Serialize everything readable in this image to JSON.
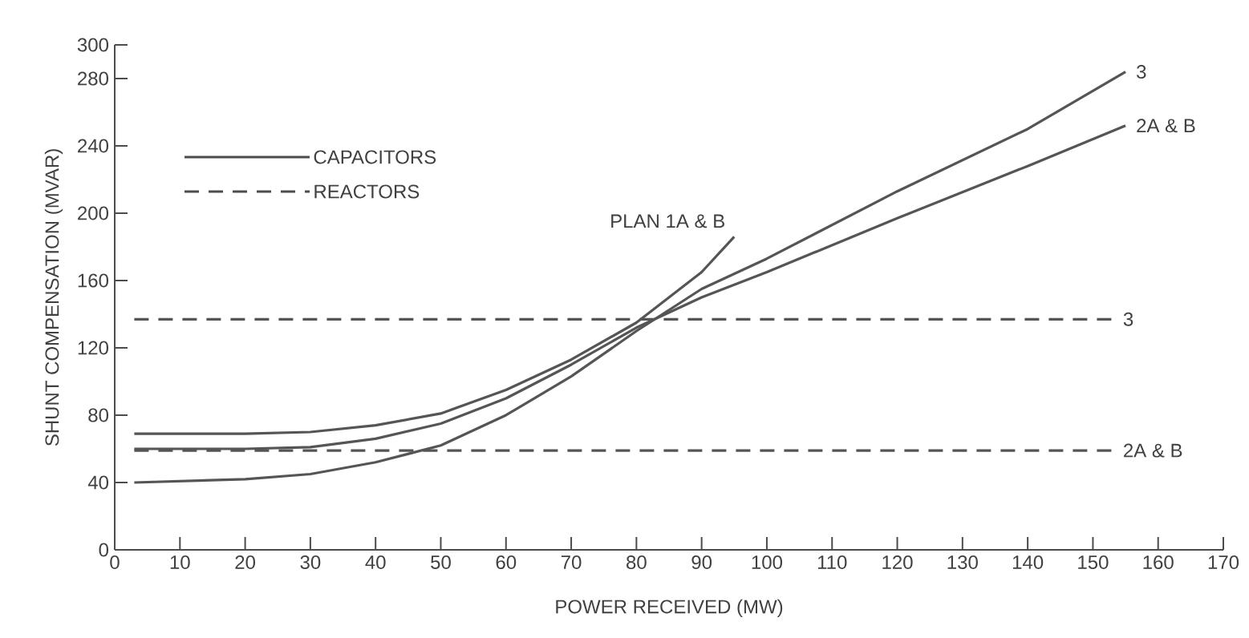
{
  "chart_data": {
    "type": "line",
    "xlabel": "POWER RECEIVED (MW)",
    "ylabel": "SHUNT COMPENSATION (MVAR)",
    "xlim": [
      0,
      170
    ],
    "ylim": [
      0,
      300
    ],
    "xticks": [
      0,
      10,
      20,
      30,
      40,
      50,
      60,
      70,
      80,
      90,
      100,
      110,
      120,
      130,
      140,
      150,
      160,
      170
    ],
    "yticks": [
      0,
      40,
      80,
      120,
      160,
      200,
      240,
      280,
      300
    ],
    "grid": false,
    "marker": "none",
    "annotations": [
      "CAPACITORS",
      "REACTORS"
    ],
    "series": [
      {
        "name": "3",
        "color": "#555555",
        "line_style": "solid",
        "x": [
          3,
          20,
          30,
          40,
          50,
          60,
          70,
          80,
          90,
          100,
          120,
          140,
          155
        ],
        "values": [
          40,
          42,
          45,
          52,
          62,
          80,
          103,
          130,
          155,
          173,
          213,
          250,
          284
        ]
      },
      {
        "name": "2A & B",
        "color": "#555555",
        "line_style": "solid",
        "x": [
          3,
          20,
          30,
          40,
          50,
          60,
          70,
          80,
          90,
          100,
          120,
          140,
          155
        ],
        "values": [
          60,
          60,
          61,
          66,
          75,
          90,
          110,
          132,
          150,
          165,
          197,
          228,
          252
        ]
      },
      {
        "name": "PLAN 1A & B",
        "color": "#555555",
        "line_style": "solid",
        "x": [
          3,
          20,
          30,
          40,
          50,
          60,
          70,
          80,
          90,
          95
        ],
        "values": [
          69,
          69,
          70,
          74,
          81,
          95,
          113,
          135,
          165,
          186
        ]
      },
      {
        "name": "3",
        "color": "#555555",
        "line_style": "dashed",
        "x": [
          3,
          153
        ],
        "values": [
          137,
          137
        ]
      },
      {
        "name": "2A & B",
        "color": "#555555",
        "line_style": "dashed",
        "x": [
          3,
          153
        ],
        "values": [
          59,
          59
        ]
      }
    ]
  }
}
